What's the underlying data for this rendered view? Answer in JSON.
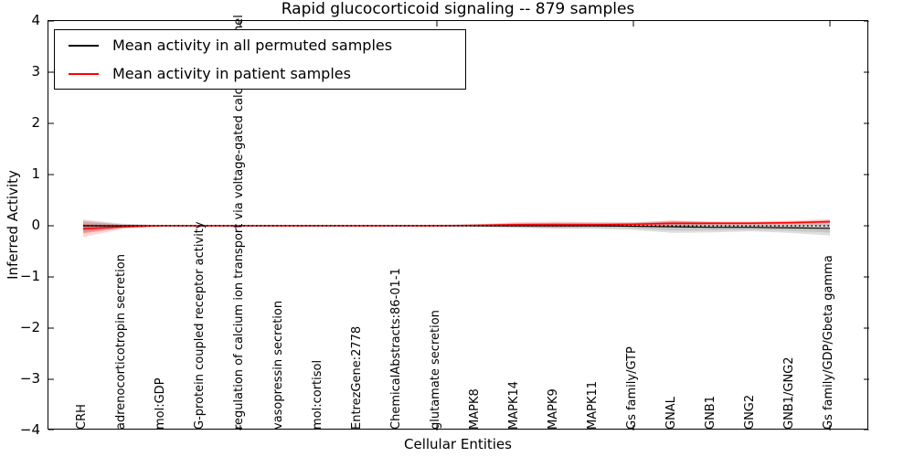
{
  "title": "Rapid glucocorticoid signaling -- 879 samples",
  "xlabel": "Cellular Entities",
  "ylabel": "Inferred Activity",
  "legend": {
    "entries": [
      {
        "label": "Mean activity in all permuted samples",
        "color": "#000000"
      },
      {
        "label": "Mean activity in patient samples",
        "color": "#ff0000"
      }
    ]
  },
  "colors": {
    "permuted_line": "#000000",
    "patient_line": "#ff0000",
    "permuted_band": "#000000",
    "patient_band": "#ff0000",
    "zero_line": "#000000"
  },
  "axes": {
    "ylim": [
      -4,
      4
    ],
    "ytick_values": [
      4,
      3,
      2,
      1,
      0,
      -1,
      -2,
      -3,
      -4
    ],
    "ytick_labels": [
      "4",
      "3",
      "2",
      "1",
      "0",
      "−1",
      "−2",
      "−3",
      "−4"
    ],
    "xtick_category_indices": [
      4,
      9,
      14,
      19
    ],
    "grid": false,
    "legend_position": "upper left"
  },
  "chart_data": {
    "type": "line",
    "title": "Rapid glucocorticoid signaling -- 879 samples",
    "xlabel": "Cellular Entities",
    "ylabel": "Inferred Activity",
    "ylim": [
      -4,
      4
    ],
    "categories": [
      "CRH",
      "adrenocorticotropin secretion",
      "mol:GDP",
      "G-protein coupled receptor activity",
      "regulation of calcium ion transport via voltage-gated calcium channel",
      "vasopressin secretion",
      "mol:cortisol",
      "EntrezGene:2778",
      "ChemicalAbstracts:86-01-1",
      "glutamate secretion",
      "MAPK8",
      "MAPK14",
      "MAPK9",
      "MAPK11",
      "Gs family/GTP",
      "GNAL",
      "GNB1",
      "GNG2",
      "GNB1/GNG2",
      "Gs family/GDP/Gbeta gamma"
    ],
    "series": [
      {
        "name": "Mean activity in all permuted samples",
        "values": [
          0,
          0,
          0,
          0,
          0,
          0,
          0,
          0,
          0,
          0,
          0,
          0,
          0,
          0,
          -0.01,
          -0.02,
          -0.03,
          -0.03,
          -0.04,
          -0.05
        ],
        "std": [
          0.12,
          0.04,
          0.015,
          0.015,
          0.015,
          0.015,
          0.015,
          0.015,
          0.015,
          0.02,
          0.03,
          0.04,
          0.06,
          0.06,
          0.07,
          0.12,
          0.1,
          0.08,
          0.1,
          0.14
        ]
      },
      {
        "name": "Mean activity in patient samples",
        "values": [
          -0.06,
          -0.02,
          0,
          0,
          0,
          0,
          0,
          0,
          0,
          0,
          0.01,
          0.02,
          0.02,
          0.02,
          0.03,
          0.05,
          0.05,
          0.05,
          0.06,
          0.08
        ],
        "std": [
          0.16,
          0.04,
          0.01,
          0.01,
          0.01,
          0.01,
          0.01,
          0.01,
          0.01,
          0.01,
          0.02,
          0.05,
          0.06,
          0.05,
          0.04,
          0.05,
          0.04,
          0.04,
          0.04,
          0.05
        ]
      }
    ],
    "zero_reference_line": {
      "value": 0,
      "style": "dotted",
      "color": "#000000"
    }
  }
}
